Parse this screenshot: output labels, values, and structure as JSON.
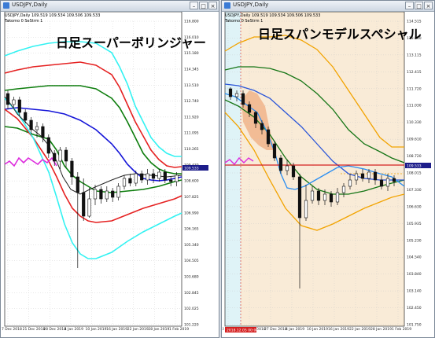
{
  "windows": [
    {
      "id": "winA",
      "window_title": "USDJPY,Daily",
      "symbol_header": "USDJPY,Daily  109.519 109.534 109.506 109.533",
      "indicator_header": "Takomo 0 SeStrm 1",
      "overlay_title": "日足スーパーボリンジャー",
      "current_price_label": "109.533",
      "y_ticks": [
        "116.800",
        "116.010",
        "115.180",
        "114.345",
        "113.510",
        "112.740",
        "111.920",
        "111.095",
        "110.265",
        "109.430",
        "108.600",
        "107.825",
        "106.990",
        "106.165",
        "105.340",
        "104.505",
        "103.680",
        "102.845",
        "102.025",
        "101.220"
      ],
      "x_ticks": [
        "7 Dec 2018",
        "21 Dec 2018",
        "28 Dec 2018",
        "4 Jan 2019",
        "10 Jan 2019",
        "16 Jan 2019",
        "22 Jan 2019",
        "28 Jan 2019",
        "1 Feb 2019"
      ],
      "colors": {
        "band3": "#33f2f2",
        "band2": "#e52121",
        "band1": "#0d7d0d",
        "midline": "#1515d8",
        "chikou": "#dd2bdd",
        "price_line": "#222222",
        "bg": "#ffffff"
      }
    },
    {
      "id": "winB",
      "window_title": "USDJPY,Daily",
      "symbol_header": "USDJPY,Daily  109.519 109.534 109.506 109.533",
      "indicator_header": "Takomo 0 SeStrm 1",
      "overlay_title": "日足スパンモデルスペシャル",
      "current_price_label": "109.533",
      "date_tag": "2018.12.05 00:00",
      "y_ticks": [
        "114.515",
        "113.810",
        "113.115",
        "112.415",
        "111.720",
        "111.030",
        "110.330",
        "109.610",
        "108.720",
        "108.015",
        "107.330",
        "106.630",
        "105.935",
        "105.230",
        "104.540",
        "103.840",
        "103.140",
        "102.450",
        "101.750"
      ],
      "x_ticks": [
        "2 Dec 2018",
        "20 Dec 2018",
        "27 Dec 2018",
        "4 Jan 2019",
        "10 Jan 2019",
        "16 Jan 2019",
        "22 Jan 2019",
        "28 Jan 2019",
        "1 Feb 2019"
      ],
      "colors": {
        "cloud_bg": "#f9ebd7",
        "cloud_red": "#f1b48a",
        "orange_band": "#f2a300",
        "green_band": "#157515",
        "blue_line": "#2a55d8",
        "light_blue_line": "#2a8ef2",
        "red_line": "#d42020",
        "chikou": "#dd2bdd",
        "bg": "#ffffff"
      }
    }
  ]
}
